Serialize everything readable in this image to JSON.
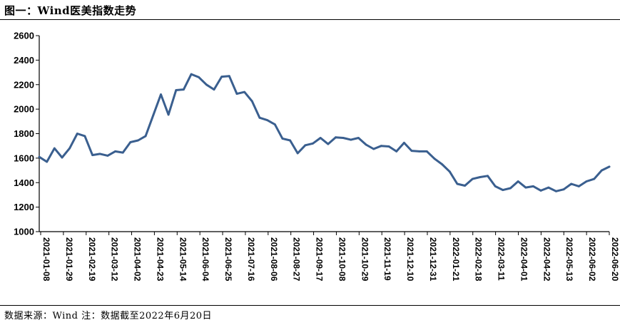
{
  "figure": {
    "title": "图一：Wind医美指数走势",
    "source": "数据来源：Wind 注：数据截至2022年6月20日"
  },
  "chart_data": {
    "type": "line",
    "title": "",
    "xlabel": "",
    "ylabel": "",
    "ylim": [
      1000,
      2600
    ],
    "yticks": [
      1000,
      1200,
      1400,
      1600,
      1800,
      2000,
      2200,
      2400,
      2600
    ],
    "grid": false,
    "legend": "none",
    "line_color": "#3a5f8f",
    "x_tick_labels": [
      "2021-01-08",
      "2021-01-29",
      "2021-02-19",
      "2021-03-12",
      "2021-04-02",
      "2021-04-23",
      "2021-05-14",
      "2021-06-04",
      "2021-06-25",
      "2021-07-16",
      "2021-08-06",
      "2021-08-27",
      "2021-09-17",
      "2021-10-08",
      "2021-10-29",
      "2021-11-19",
      "2021-12-10",
      "2021-12-31",
      "2022-01-21",
      "2022-02-18",
      "2022-03-11",
      "2022-04-01",
      "2022-04-22",
      "2022-05-13",
      "2022-06-02",
      "2022-06-20"
    ],
    "series": [
      {
        "values": [
          1610,
          1570,
          1680,
          1605,
          1680,
          1800,
          1780,
          1625,
          1635,
          1620,
          1655,
          1645,
          1730,
          1745,
          1780,
          1950,
          2120,
          1955,
          2155,
          2160,
          2285,
          2260,
          2200,
          2160,
          2265,
          2270,
          2125,
          2140,
          2065,
          1930,
          1910,
          1875,
          1760,
          1745,
          1640,
          1705,
          1720,
          1765,
          1715,
          1770,
          1765,
          1750,
          1765,
          1710,
          1675,
          1700,
          1695,
          1655,
          1725,
          1660,
          1655,
          1655,
          1595,
          1550,
          1490,
          1390,
          1375,
          1430,
          1445,
          1455,
          1370,
          1340,
          1355,
          1410,
          1360,
          1370,
          1335,
          1360,
          1330,
          1345,
          1390,
          1370,
          1410,
          1430,
          1500,
          1530
        ]
      }
    ]
  }
}
